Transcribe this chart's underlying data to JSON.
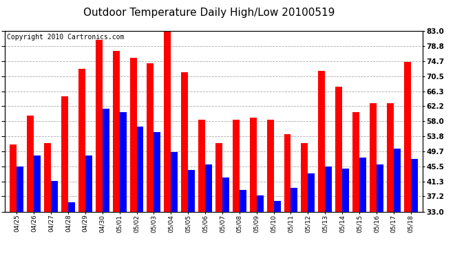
{
  "title": "Outdoor Temperature Daily High/Low 20100519",
  "copyright": "Copyright 2010 Cartronics.com",
  "dates": [
    "04/25",
    "04/26",
    "04/27",
    "04/28",
    "04/29",
    "04/30",
    "05/01",
    "05/02",
    "05/03",
    "05/04",
    "05/05",
    "05/06",
    "05/07",
    "05/08",
    "05/09",
    "05/10",
    "05/11",
    "05/12",
    "05/13",
    "05/14",
    "05/15",
    "05/16",
    "05/17",
    "05/18"
  ],
  "highs": [
    51.5,
    59.5,
    52.0,
    65.0,
    72.5,
    80.5,
    77.5,
    75.5,
    74.0,
    83.0,
    71.5,
    58.5,
    52.0,
    58.5,
    59.0,
    58.5,
    54.5,
    52.0,
    72.0,
    67.5,
    60.5,
    63.0,
    63.0,
    74.5
  ],
  "lows": [
    45.5,
    48.5,
    41.5,
    35.5,
    48.5,
    61.5,
    60.5,
    56.5,
    55.0,
    49.5,
    44.5,
    46.0,
    42.5,
    39.0,
    37.5,
    36.0,
    39.5,
    43.5,
    45.5,
    45.0,
    48.0,
    46.0,
    50.5,
    47.5
  ],
  "high_color": "#ff0000",
  "low_color": "#0000ff",
  "bg_color": "#ffffff",
  "grid_color": "#aaaaaa",
  "ymin": 33.0,
  "ymax": 83.0,
  "yticks": [
    33.0,
    37.2,
    41.3,
    45.5,
    49.7,
    53.8,
    58.0,
    62.2,
    66.3,
    70.5,
    74.7,
    78.8,
    83.0
  ],
  "title_fontsize": 11,
  "copyright_fontsize": 7,
  "bar_width": 0.4
}
